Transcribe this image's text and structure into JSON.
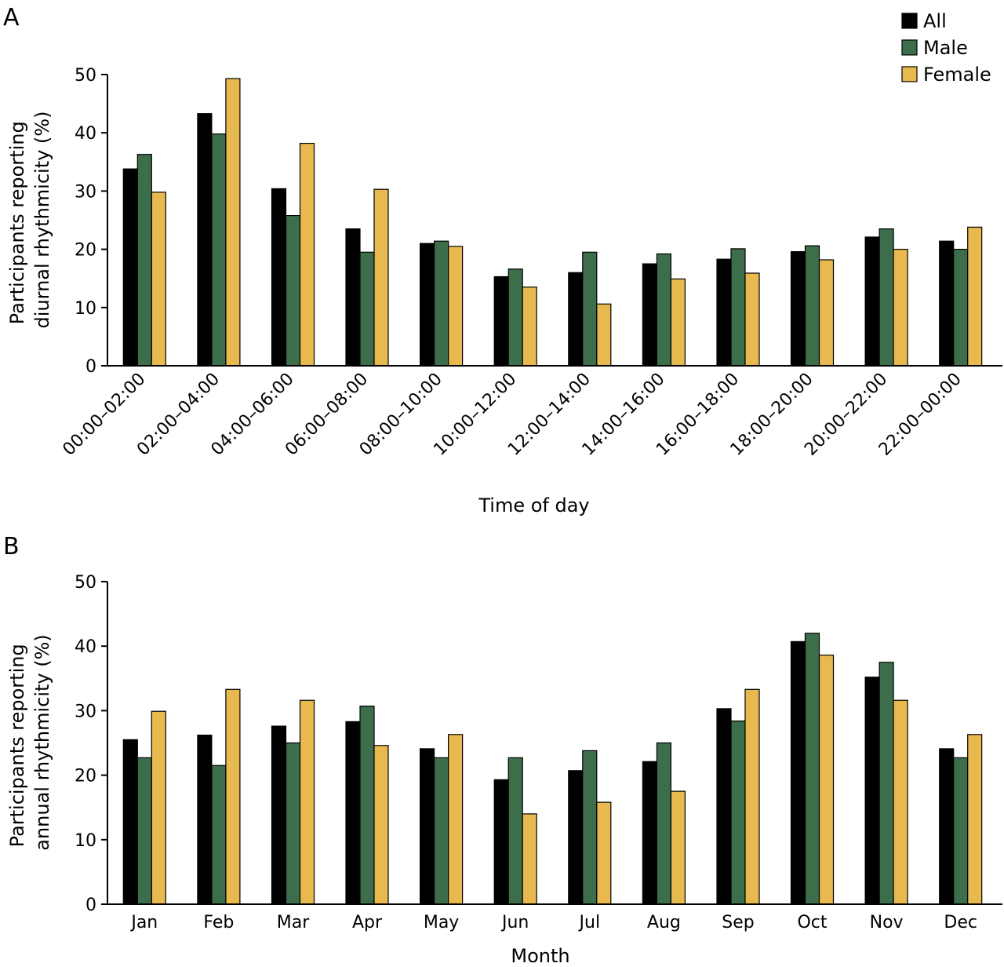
{
  "legend": [
    {
      "label": "All",
      "color": "#000000"
    },
    {
      "label": "Male",
      "color": "#3d6e4b"
    },
    {
      "label": "Female",
      "color": "#e8b94f"
    }
  ],
  "chart_data": [
    {
      "type": "bar",
      "panel": "A",
      "xlabel": "Time of day",
      "ylabel": "Participants reporting diurnal rhythmicity (%)",
      "ylabel_lines": [
        "Participants reporting",
        "diurnal rhythmicity (%)"
      ],
      "ylim": [
        0,
        50
      ],
      "yticks": [
        0,
        10,
        20,
        30,
        40,
        50
      ],
      "grid": false,
      "legend_position": "top-right",
      "categories": [
        "00:00–02:00",
        "02:00–04:00",
        "04:00–06:00",
        "06:00–08:00",
        "08:00–10:00",
        "10:00–12:00",
        "12:00–14:00",
        "14:00–16:00",
        "16:00–18:00",
        "18:00–20:00",
        "20:00–22:00",
        "22:00–00:00"
      ],
      "series": [
        {
          "name": "All",
          "values": [
            33.8,
            43.3,
            30.4,
            23.5,
            21.0,
            15.3,
            16.0,
            17.5,
            18.3,
            19.6,
            22.1,
            21.4
          ]
        },
        {
          "name": "Male",
          "values": [
            36.3,
            39.8,
            25.8,
            19.5,
            21.4,
            16.6,
            19.5,
            19.2,
            20.1,
            20.6,
            23.5,
            20.0
          ]
        },
        {
          "name": "Female",
          "values": [
            29.8,
            49.3,
            38.2,
            30.3,
            20.5,
            13.5,
            10.6,
            14.9,
            15.9,
            18.2,
            20.0,
            23.8
          ]
        }
      ]
    },
    {
      "type": "bar",
      "panel": "B",
      "xlabel": "Month",
      "ylabel": "Participants reporting annual rhythmicity (%)",
      "ylabel_lines": [
        "Participants reporting",
        "annual rhythmicity (%)"
      ],
      "ylim": [
        0,
        50
      ],
      "yticks": [
        0,
        10,
        20,
        30,
        40,
        50
      ],
      "grid": false,
      "categories": [
        "Jan",
        "Feb",
        "Mar",
        "Apr",
        "May",
        "Jun",
        "Jul",
        "Aug",
        "Sep",
        "Oct",
        "Nov",
        "Dec"
      ],
      "series": [
        {
          "name": "All",
          "values": [
            25.5,
            26.2,
            27.6,
            28.3,
            24.1,
            19.3,
            20.7,
            22.1,
            30.3,
            40.7,
            35.2,
            24.1
          ]
        },
        {
          "name": "Male",
          "values": [
            22.7,
            21.5,
            25.0,
            30.7,
            22.7,
            22.7,
            23.8,
            25.0,
            28.4,
            42.0,
            37.5,
            22.7
          ]
        },
        {
          "name": "Female",
          "values": [
            29.9,
            33.3,
            31.6,
            24.6,
            26.3,
            14.0,
            15.8,
            17.5,
            33.3,
            38.6,
            31.6,
            26.3
          ]
        }
      ]
    }
  ]
}
